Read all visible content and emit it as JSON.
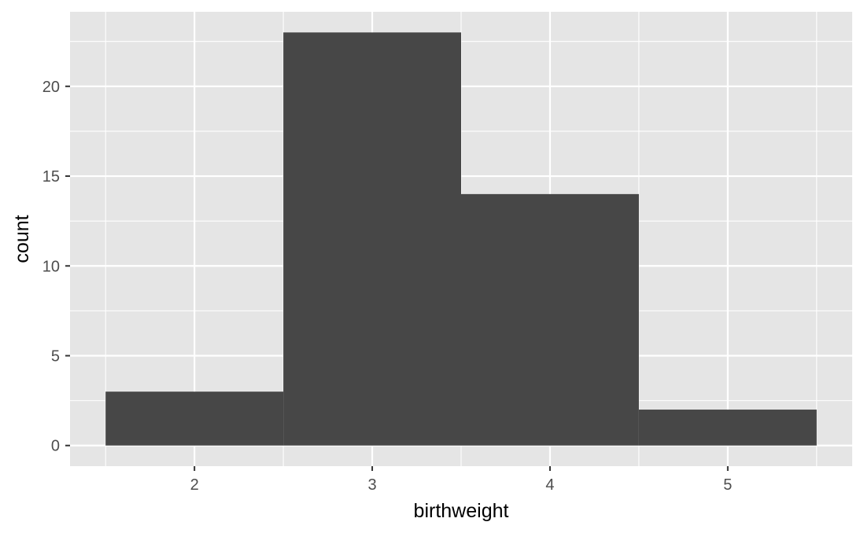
{
  "chart_data": {
    "type": "bar",
    "subtype": "histogram",
    "title": "",
    "xlabel": "birthweight",
    "ylabel": "count",
    "bins": [
      {
        "x0": 1.5,
        "x1": 2.5,
        "count": 3
      },
      {
        "x0": 2.5,
        "x1": 3.5,
        "count": 23
      },
      {
        "x0": 3.5,
        "x1": 4.5,
        "count": 14
      },
      {
        "x0": 4.5,
        "x1": 5.5,
        "count": 2
      }
    ],
    "xlim": [
      1.3,
      5.7
    ],
    "ylim": [
      -1.15,
      24.15
    ],
    "x_ticks": [
      2,
      3,
      4,
      5
    ],
    "x_minor_ticks": [
      1.5,
      2.5,
      3.5,
      4.5,
      5.5
    ],
    "y_ticks": [
      0,
      5,
      10,
      15,
      20
    ],
    "y_minor_ticks": [
      2.5,
      7.5,
      12.5,
      17.5,
      22.5
    ],
    "x_tick_labels": [
      "2",
      "3",
      "4",
      "5"
    ],
    "y_tick_labels": [
      "0",
      "5",
      "10",
      "15",
      "20"
    ],
    "grid": true,
    "legend": "none",
    "colors": {
      "bar_fill": "#474747",
      "panel_background": "#e5e5e5",
      "grid_line": "#ffffff",
      "tick_mark": "#333333",
      "tick_label": "#4d4d4d"
    }
  }
}
